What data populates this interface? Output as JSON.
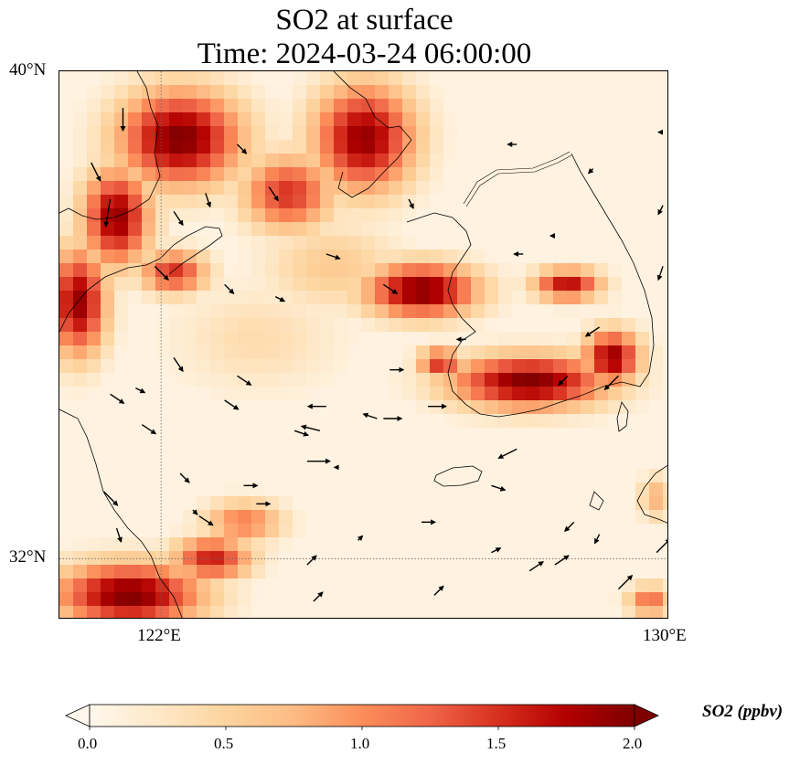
{
  "title": {
    "line1": "SO2 at surface",
    "line2": "Time: 2024-03-24 06:00:00"
  },
  "map": {
    "extent": {
      "lon_min": 120.4,
      "lon_max": 130.0,
      "lat_min": 31.0,
      "lat_max": 40.0
    },
    "gridlines": {
      "lons": [
        122
      ],
      "lats": [
        32
      ],
      "style": "dotted"
    },
    "lat_labels": [
      {
        "value": 40,
        "text": "40°N"
      },
      {
        "value": 32,
        "text": "32°N"
      }
    ],
    "lon_labels": [
      {
        "value": 122,
        "text": "122°E"
      },
      {
        "value": 130,
        "text": "130°E"
      }
    ],
    "field": "SO2",
    "units": "ppbv",
    "plumes": [
      {
        "lon": 122.3,
        "lat": 38.9,
        "value": 2.0,
        "rx": 1.1,
        "ry": 0.9
      },
      {
        "lon": 121.3,
        "lat": 37.6,
        "value": 1.9,
        "rx": 0.6,
        "ry": 0.9
      },
      {
        "lon": 120.7,
        "lat": 36.2,
        "value": 1.9,
        "rx": 0.5,
        "ry": 1.0
      },
      {
        "lon": 122.2,
        "lat": 36.7,
        "value": 1.5,
        "rx": 0.6,
        "ry": 0.4
      },
      {
        "lon": 125.2,
        "lat": 38.9,
        "value": 1.9,
        "rx": 0.9,
        "ry": 1.0
      },
      {
        "lon": 124.0,
        "lat": 38.0,
        "value": 1.5,
        "rx": 0.8,
        "ry": 0.7
      },
      {
        "lon": 126.1,
        "lat": 36.4,
        "value": 2.0,
        "rx": 1.0,
        "ry": 0.5
      },
      {
        "lon": 128.4,
        "lat": 36.5,
        "value": 1.7,
        "rx": 0.6,
        "ry": 0.3
      },
      {
        "lon": 127.8,
        "lat": 34.9,
        "value": 2.0,
        "rx": 1.4,
        "ry": 0.5
      },
      {
        "lon": 129.1,
        "lat": 35.3,
        "value": 1.9,
        "rx": 0.5,
        "ry": 0.5
      },
      {
        "lon": 126.4,
        "lat": 35.2,
        "value": 1.5,
        "rx": 0.4,
        "ry": 0.3
      },
      {
        "lon": 121.5,
        "lat": 31.4,
        "value": 2.0,
        "rx": 1.3,
        "ry": 0.6
      },
      {
        "lon": 122.8,
        "lat": 32.0,
        "value": 1.6,
        "rx": 0.7,
        "ry": 0.4
      },
      {
        "lon": 123.3,
        "lat": 32.6,
        "value": 1.1,
        "rx": 0.7,
        "ry": 0.4
      },
      {
        "lon": 129.7,
        "lat": 31.3,
        "value": 1.2,
        "rx": 0.4,
        "ry": 0.3
      },
      {
        "lon": 129.8,
        "lat": 33.0,
        "value": 0.8,
        "rx": 0.3,
        "ry": 0.4
      },
      {
        "lon": 124.7,
        "lat": 36.8,
        "value": 0.6,
        "rx": 1.2,
        "ry": 0.8
      },
      {
        "lon": 123.5,
        "lat": 35.6,
        "value": 0.4,
        "rx": 1.5,
        "ry": 1.0
      }
    ],
    "wind_vectors": [
      {
        "lon": 120.9,
        "lat": 38.5,
        "u": 0.2,
        "v": -0.4
      },
      {
        "lon": 121.2,
        "lat": 37.9,
        "u": -0.1,
        "v": -0.6
      },
      {
        "lon": 121.4,
        "lat": 39.4,
        "u": 0.0,
        "v": -0.5
      },
      {
        "lon": 121.9,
        "lat": 36.8,
        "u": 0.3,
        "v": -0.3
      },
      {
        "lon": 122.2,
        "lat": 37.7,
        "u": 0.2,
        "v": -0.3
      },
      {
        "lon": 123.2,
        "lat": 38.8,
        "u": 0.2,
        "v": -0.2
      },
      {
        "lon": 123.7,
        "lat": 38.1,
        "u": 0.2,
        "v": -0.3
      },
      {
        "lon": 122.7,
        "lat": 38.0,
        "u": 0.1,
        "v": -0.3
      },
      {
        "lon": 123.0,
        "lat": 36.5,
        "u": 0.2,
        "v": -0.2
      },
      {
        "lon": 123.8,
        "lat": 36.3,
        "u": 0.2,
        "v": -0.1
      },
      {
        "lon": 124.6,
        "lat": 37.0,
        "u": 0.3,
        "v": -0.1
      },
      {
        "lon": 125.5,
        "lat": 36.5,
        "u": 0.3,
        "v": -0.2
      },
      {
        "lon": 125.9,
        "lat": 37.9,
        "u": 0.1,
        "v": -0.2
      },
      {
        "lon": 122.2,
        "lat": 35.3,
        "u": 0.2,
        "v": -0.3
      },
      {
        "lon": 121.2,
        "lat": 34.7,
        "u": 0.3,
        "v": -0.2
      },
      {
        "lon": 121.7,
        "lat": 34.2,
        "u": 0.3,
        "v": -0.2
      },
      {
        "lon": 123.2,
        "lat": 35.0,
        "u": 0.3,
        "v": -0.2
      },
      {
        "lon": 124.1,
        "lat": 34.1,
        "u": 0.3,
        "v": -0.1
      },
      {
        "lon": 123.0,
        "lat": 34.6,
        "u": 0.3,
        "v": -0.2
      },
      {
        "lon": 122.3,
        "lat": 33.4,
        "u": 0.2,
        "v": -0.2
      },
      {
        "lon": 121.1,
        "lat": 33.1,
        "u": 0.3,
        "v": -0.3
      },
      {
        "lon": 124.3,
        "lat": 33.6,
        "u": 0.5,
        "v": 0.0
      },
      {
        "lon": 123.3,
        "lat": 33.2,
        "u": 0.3,
        "v": 0.0
      },
      {
        "lon": 123.5,
        "lat": 32.9,
        "u": 0.3,
        "v": 0.0
      },
      {
        "lon": 122.6,
        "lat": 32.7,
        "u": 0.3,
        "v": -0.2
      },
      {
        "lon": 121.3,
        "lat": 32.5,
        "u": 0.1,
        "v": -0.3
      },
      {
        "lon": 125.5,
        "lat": 34.3,
        "u": 0.4,
        "v": 0.0
      },
      {
        "lon": 126.2,
        "lat": 34.5,
        "u": 0.4,
        "v": 0.0
      },
      {
        "lon": 125.6,
        "lat": 35.1,
        "u": 0.3,
        "v": 0.0
      },
      {
        "lon": 126.1,
        "lat": 32.6,
        "u": 0.3,
        "v": 0.0
      },
      {
        "lon": 127.2,
        "lat": 33.2,
        "u": 0.3,
        "v": -0.1
      },
      {
        "lon": 127.6,
        "lat": 33.8,
        "u": -0.4,
        "v": -0.2
      },
      {
        "lon": 129.2,
        "lat": 35.0,
        "u": -0.3,
        "v": -0.3
      },
      {
        "lon": 128.9,
        "lat": 35.8,
        "u": -0.3,
        "v": -0.2
      },
      {
        "lon": 129.9,
        "lat": 36.8,
        "u": -0.1,
        "v": -0.3
      },
      {
        "lon": 129.9,
        "lat": 37.8,
        "u": -0.1,
        "v": -0.2
      },
      {
        "lon": 128.8,
        "lat": 38.4,
        "u": -0.1,
        "v": -0.1
      },
      {
        "lon": 127.6,
        "lat": 38.8,
        "u": -0.2,
        "v": 0.0
      },
      {
        "lon": 129.9,
        "lat": 39.0,
        "u": -0.1,
        "v": 0.0
      },
      {
        "lon": 128.2,
        "lat": 37.3,
        "u": -0.1,
        "v": 0.0
      },
      {
        "lon": 127.7,
        "lat": 37.0,
        "u": -0.2,
        "v": 0.0
      },
      {
        "lon": 126.8,
        "lat": 35.6,
        "u": -0.2,
        "v": 0.0
      },
      {
        "lon": 128.4,
        "lat": 35.0,
        "u": -0.2,
        "v": -0.2
      },
      {
        "lon": 127.2,
        "lat": 32.1,
        "u": 0.2,
        "v": 0.1
      },
      {
        "lon": 126.3,
        "lat": 31.4,
        "u": 0.2,
        "v": 0.2
      },
      {
        "lon": 127.8,
        "lat": 31.8,
        "u": 0.3,
        "v": 0.2
      },
      {
        "lon": 128.2,
        "lat": 31.9,
        "u": 0.3,
        "v": 0.2
      },
      {
        "lon": 129.2,
        "lat": 31.5,
        "u": 0.3,
        "v": 0.3
      },
      {
        "lon": 129.8,
        "lat": 32.1,
        "u": 0.3,
        "v": 0.3
      },
      {
        "lon": 128.5,
        "lat": 32.6,
        "u": -0.2,
        "v": -0.2
      },
      {
        "lon": 128.9,
        "lat": 32.4,
        "u": -0.1,
        "v": -0.2
      },
      {
        "lon": 124.4,
        "lat": 31.3,
        "u": 0.2,
        "v": 0.2
      },
      {
        "lon": 124.3,
        "lat": 31.9,
        "u": 0.2,
        "v": 0.2
      },
      {
        "lon": 125.1,
        "lat": 32.3,
        "u": 0.1,
        "v": 0.1
      },
      {
        "lon": 124.8,
        "lat": 33.5,
        "u": -0.1,
        "v": 0.0
      },
      {
        "lon": 124.5,
        "lat": 34.1,
        "u": -0.4,
        "v": 0.1
      },
      {
        "lon": 125.4,
        "lat": 34.3,
        "u": -0.3,
        "v": 0.1
      },
      {
        "lon": 124.6,
        "lat": 34.5,
        "u": -0.4,
        "v": 0.0
      },
      {
        "lon": 122.5,
        "lat": 32.8,
        "u": 0.1,
        "v": -0.1
      },
      {
        "lon": 121.6,
        "lat": 34.8,
        "u": 0.2,
        "v": -0.1
      }
    ]
  },
  "colorbar": {
    "min": 0.0,
    "max": 2.0,
    "extend": "both",
    "ticks": [
      {
        "value": 0.0,
        "text": "0.0"
      },
      {
        "value": 0.5,
        "text": "0.5"
      },
      {
        "value": 1.0,
        "text": "1.0"
      },
      {
        "value": 1.5,
        "text": "1.5"
      },
      {
        "value": 2.0,
        "text": "2.0"
      }
    ],
    "label": "SO2 (ppbv)",
    "colors": [
      "#fff7ec",
      "#fee8c8",
      "#fdd49e",
      "#fdbb84",
      "#fc8d59",
      "#ef6548",
      "#d7301f",
      "#b30000",
      "#7f0000"
    ]
  }
}
